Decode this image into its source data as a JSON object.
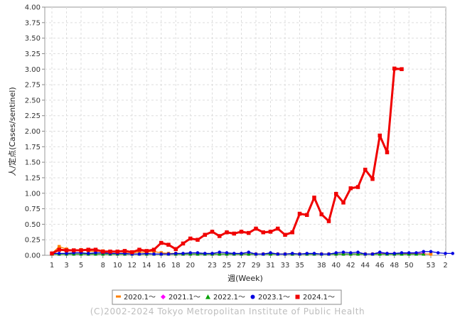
{
  "chart_data": {
    "type": "line",
    "ylabel": "人/定点(Cases/sentinel)",
    "xlabel": "週(Week)",
    "ylim": [
      0,
      4
    ],
    "y_ticks": [
      "0.00",
      "0.25",
      "0.50",
      "0.75",
      "1.00",
      "1.25",
      "1.50",
      "1.75",
      "2.00",
      "2.25",
      "2.50",
      "2.75",
      "3.00",
      "3.25",
      "3.50",
      "3.75",
      "4.00"
    ],
    "x_tick_labels": [
      "1",
      "3",
      "5",
      "8",
      "10",
      "12",
      "14",
      "16",
      "18",
      "20",
      "23",
      "25",
      "27",
      "29",
      "31",
      "33",
      "35",
      "38",
      "40",
      "42",
      "44",
      "46",
      "48",
      "50",
      "53",
      "2"
    ],
    "grid": true,
    "legend_position": "bottom",
    "copyright": "(C)2002-2024 Tokyo Metropolitan Institute of Public Health",
    "series": [
      {
        "name": "2020.1～",
        "color": "#ff8000",
        "marker": "rect",
        "values": [
          0.03,
          0.14,
          0.1,
          0.08,
          0.09,
          0.07,
          0.06,
          0.07,
          0.05,
          0.06,
          0.05,
          0.04,
          0.05,
          0.05,
          0.06,
          0.04,
          0.03,
          0.03,
          0.02,
          0.02,
          0.02,
          0.02,
          0.02,
          0.02,
          0.02,
          0.02,
          0.02,
          0.02,
          0.02,
          0.02,
          0.02,
          0.02,
          0.02,
          0.02,
          0.02,
          0.02,
          0.02,
          0.02,
          0.02,
          0.02,
          0.02,
          0.02,
          0.02,
          0.02,
          0.02,
          0.02,
          0.02,
          0.02,
          0.02,
          0.02,
          0.02,
          0.02,
          0.02
        ]
      },
      {
        "name": "2021.1～",
        "color": "#ff00ff",
        "marker": "diamond",
        "values": [
          0.02,
          0.02,
          0.02,
          0.02,
          0.02,
          0.02,
          0.02,
          0.02,
          0.02,
          0.02,
          0.02,
          0.02,
          0.02,
          0.02,
          0.02,
          0.02,
          0.02,
          0.02,
          0.02,
          0.02,
          0.02,
          0.02,
          0.02,
          0.02,
          0.02,
          0.02,
          0.02,
          0.02,
          0.02,
          0.02,
          0.02,
          0.02,
          0.02,
          0.02,
          0.02,
          0.02,
          0.02,
          0.02,
          0.02,
          0.02,
          0.02,
          0.02,
          0.02,
          0.02,
          0.02,
          0.03,
          0.03,
          0.03,
          0.03,
          0.03,
          0.03,
          0.03
        ]
      },
      {
        "name": "2022.1～",
        "color": "#00a000",
        "marker": "triangle",
        "values": [
          0.02,
          0.02,
          0.02,
          0.02,
          0.02,
          0.02,
          0.02,
          0.02,
          0.02,
          0.02,
          0.02,
          0.02,
          0.02,
          0.02,
          0.02,
          0.02,
          0.02,
          0.02,
          0.02,
          0.02,
          0.02,
          0.02,
          0.02,
          0.02,
          0.02,
          0.02,
          0.02,
          0.02,
          0.02,
          0.02,
          0.02,
          0.02,
          0.02,
          0.02,
          0.02,
          0.02,
          0.02,
          0.02,
          0.02,
          0.02,
          0.02,
          0.02,
          0.02,
          0.02,
          0.02,
          0.02,
          0.02,
          0.02,
          0.02,
          0.02,
          0.02,
          0.02
        ]
      },
      {
        "name": "2023.1～",
        "color": "#0000e0",
        "marker": "circle",
        "values": [
          0.03,
          0.03,
          0.03,
          0.04,
          0.04,
          0.03,
          0.04,
          0.04,
          0.03,
          0.03,
          0.03,
          0.02,
          0.02,
          0.03,
          0.02,
          0.02,
          0.02,
          0.03,
          0.03,
          0.04,
          0.04,
          0.03,
          0.03,
          0.05,
          0.04,
          0.03,
          0.03,
          0.05,
          0.02,
          0.02,
          0.04,
          0.02,
          0.02,
          0.03,
          0.02,
          0.03,
          0.03,
          0.02,
          0.02,
          0.04,
          0.05,
          0.04,
          0.05,
          0.02,
          0.02,
          0.05,
          0.03,
          0.03,
          0.04,
          0.04,
          0.04,
          0.06,
          0.06,
          0.04,
          0.03,
          0.03
        ]
      },
      {
        "name": "2024.1～",
        "color": "#f00000",
        "marker": "rect",
        "values": [
          0.03,
          0.09,
          0.08,
          0.08,
          0.08,
          0.09,
          0.09,
          0.06,
          0.06,
          0.06,
          0.07,
          0.05,
          0.09,
          0.07,
          0.09,
          0.2,
          0.17,
          0.1,
          0.19,
          0.27,
          0.25,
          0.33,
          0.38,
          0.31,
          0.37,
          0.35,
          0.38,
          0.36,
          0.43,
          0.37,
          0.38,
          0.43,
          0.33,
          0.37,
          0.67,
          0.65,
          0.93,
          0.66,
          0.55,
          0.99,
          0.85,
          1.08,
          1.1,
          1.38,
          1.23,
          1.93,
          1.66,
          3.01,
          3.0
        ]
      }
    ]
  }
}
